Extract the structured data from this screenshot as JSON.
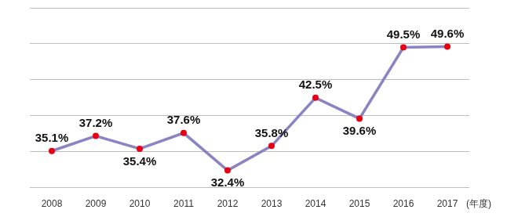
{
  "chart_data": {
    "type": "line",
    "categories": [
      "2008",
      "2009",
      "2010",
      "2011",
      "2012",
      "2013",
      "2014",
      "2015",
      "2016",
      "2017"
    ],
    "values": [
      35.1,
      37.2,
      35.4,
      37.6,
      32.4,
      35.8,
      42.5,
      39.6,
      49.5,
      49.6
    ],
    "value_labels": [
      "35.1%",
      "37.2%",
      "35.4%",
      "37.6%",
      "32.4%",
      "35.8%",
      "42.5%",
      "39.6%",
      "49.5%",
      "49.6%"
    ],
    "x_label": "(年度)",
    "color": "#8b84c4",
    "marker": "circle",
    "ylim": [
      30,
      55
    ],
    "yticks": [
      30,
      35,
      40,
      45,
      50,
      55
    ],
    "grid": true,
    "data_labels": true,
    "tick_labels": "x"
  }
}
